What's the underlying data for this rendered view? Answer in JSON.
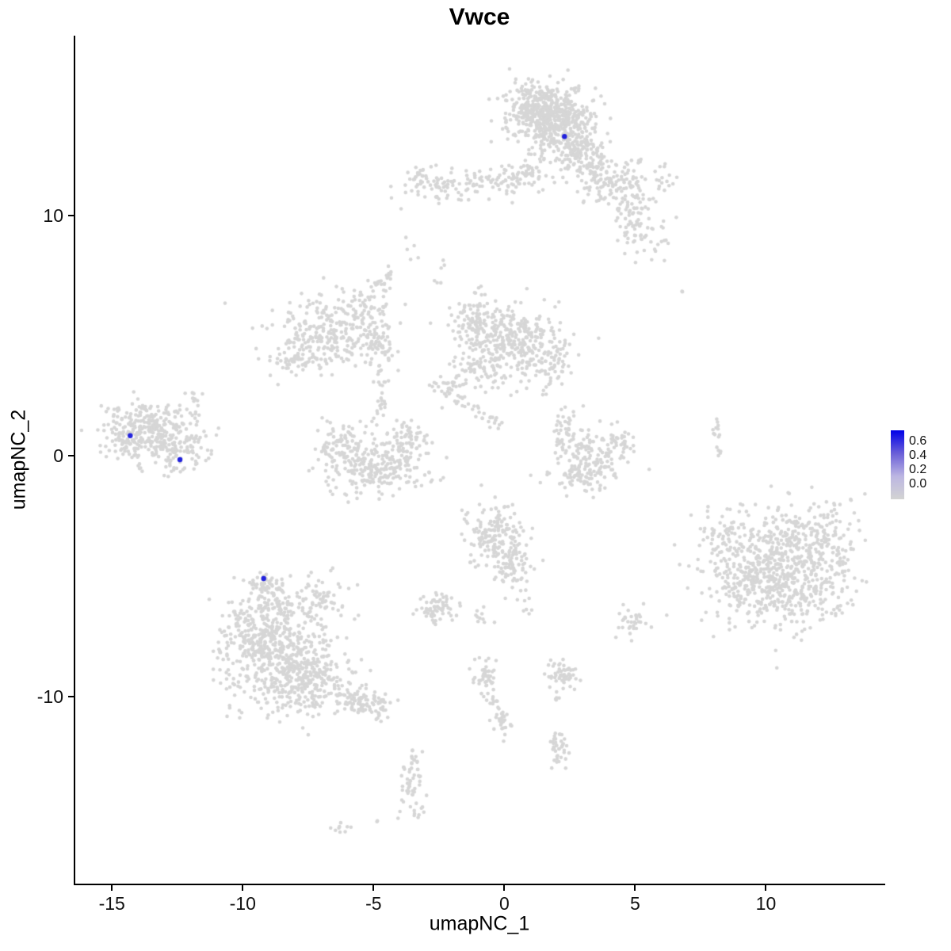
{
  "chart_data": {
    "type": "scatter",
    "title": "Vwce",
    "xlabel": "umapNC_1",
    "ylabel": "umapNC_2",
    "xlim": [
      -16.4,
      14.5
    ],
    "ylim": [
      -17.8,
      17.5
    ],
    "grid": false,
    "legend_position": "right",
    "x_ticks": [
      {
        "value": -15,
        "label": "-15"
      },
      {
        "value": -10,
        "label": "-10"
      },
      {
        "value": -5,
        "label": "-5"
      },
      {
        "value": 0,
        "label": "0"
      },
      {
        "value": 5,
        "label": "5"
      },
      {
        "value": 10,
        "label": "10"
      }
    ],
    "y_ticks": [
      {
        "value": 10,
        "label": "10"
      },
      {
        "value": 0,
        "label": "0"
      },
      {
        "value": -10,
        "label": "-10"
      }
    ],
    "point_color": "#D6D6D6",
    "point_radius": 2.3,
    "highlight_color": "#2222DD",
    "highlight_radius": 3.2,
    "axis_color": "#000000",
    "legend": {
      "labels": [
        "0.6",
        "0.4",
        "0.2",
        "0.0"
      ],
      "gradient": [
        "#0000E8",
        "#6A5FD8",
        "#BCB6E2",
        "#D3D3D3"
      ]
    },
    "highlighted_cells": [
      {
        "x": 2.3,
        "y": 13.3,
        "value": 0.6
      },
      {
        "x": -14.3,
        "y": 0.85,
        "value": 0.7
      },
      {
        "x": -12.4,
        "y": -0.15,
        "value": 0.5
      },
      {
        "x": -9.2,
        "y": -5.1,
        "value": 0.6
      }
    ],
    "clusters": [
      {
        "x": 1.8,
        "y": 14.1,
        "sx": 0.75,
        "sy": 0.7,
        "n": 480
      },
      {
        "x": 1.1,
        "y": 14.7,
        "sx": 0.5,
        "sy": 0.4,
        "n": 130
      },
      {
        "x": 2.6,
        "y": 13.0,
        "sx": 0.55,
        "sy": 0.5,
        "n": 130
      },
      {
        "x": 3.2,
        "y": 12.1,
        "sx": 0.45,
        "sy": 0.45,
        "n": 60
      },
      {
        "x": 3.9,
        "y": 11.3,
        "sx": 0.6,
        "sy": 0.55,
        "n": 65
      },
      {
        "x": 4.9,
        "y": 10.3,
        "sx": 0.55,
        "sy": 0.5,
        "n": 55
      },
      {
        "x": 5.3,
        "y": 9.1,
        "sx": 0.5,
        "sy": 0.45,
        "n": 45
      },
      {
        "x": 4.6,
        "y": 11.6,
        "sx": 0.7,
        "sy": 0.55,
        "n": 55
      },
      {
        "x": 6.2,
        "y": 11.3,
        "sx": 0.3,
        "sy": 0.3,
        "n": 8
      },
      {
        "x": -0.6,
        "y": 11.4,
        "sx": 1.3,
        "sy": 0.35,
        "n": 95
      },
      {
        "x": -2.6,
        "y": 11.1,
        "sx": 0.5,
        "sy": 0.35,
        "n": 45
      },
      {
        "x": -3.3,
        "y": 11.7,
        "sx": 0.25,
        "sy": 0.25,
        "n": 18
      },
      {
        "x": 0.8,
        "y": 11.9,
        "sx": 0.45,
        "sy": 0.35,
        "n": 40
      },
      {
        "x": 6.8,
        "y": 6.9,
        "sx": 0.05,
        "sy": 0.05,
        "n": 2
      },
      {
        "x": 0.2,
        "y": 4.9,
        "sx": 0.9,
        "sy": 0.7,
        "n": 290
      },
      {
        "x": -1.1,
        "y": 5.7,
        "sx": 0.5,
        "sy": 0.5,
        "n": 85
      },
      {
        "x": 1.5,
        "y": 3.9,
        "sx": 0.6,
        "sy": 0.5,
        "n": 85
      },
      {
        "x": -0.9,
        "y": 3.6,
        "sx": 0.6,
        "sy": 0.45,
        "n": 75
      },
      {
        "x": -2.2,
        "y": 2.8,
        "sx": 0.4,
        "sy": 0.35,
        "n": 35
      },
      {
        "x": -6.8,
        "y": 5.0,
        "sx": 1.0,
        "sy": 0.75,
        "n": 270
      },
      {
        "x": -5.4,
        "y": 6.2,
        "sx": 0.45,
        "sy": 0.4,
        "n": 50
      },
      {
        "line": [
          -5.0,
          6.8,
          -4.3,
          7.7
        ],
        "j": 0.12,
        "n": 22
      },
      {
        "x": -7.9,
        "y": 4.0,
        "sx": 0.5,
        "sy": 0.4,
        "n": 45
      },
      {
        "line": [
          -4.55,
          7.2,
          -4.75,
          2.2
        ],
        "j": 0.13,
        "n": 42
      },
      {
        "x": -4.8,
        "y": 4.6,
        "sx": 0.3,
        "sy": 0.4,
        "n": 40
      },
      {
        "line": [
          -4.7,
          2.2,
          -5.0,
          1.3
        ],
        "j": 0.12,
        "n": 10
      },
      {
        "x": -4.9,
        "y": -0.4,
        "sx": 1.0,
        "sy": 0.6,
        "n": 270
      },
      {
        "x": -6.2,
        "y": 0.6,
        "sx": 0.4,
        "sy": 0.5,
        "n": 65
      },
      {
        "x": -3.6,
        "y": 0.7,
        "sx": 0.35,
        "sy": 0.45,
        "n": 55
      },
      {
        "x": -13.5,
        "y": 1.1,
        "sx": 0.85,
        "sy": 0.6,
        "n": 310
      },
      {
        "x": -12.4,
        "y": 0.3,
        "sx": 0.5,
        "sy": 0.4,
        "n": 65
      },
      {
        "x": -14.4,
        "y": 0.6,
        "sx": 0.3,
        "sy": 0.35,
        "n": 35
      },
      {
        "line": [
          -11.9,
          2.9,
          -11.7,
          1.6
        ],
        "j": 0.1,
        "n": 12
      },
      {
        "x": -12.6,
        "y": -0.5,
        "sx": 0.4,
        "sy": 0.25,
        "n": 14
      },
      {
        "x": 2.3,
        "y": 1.0,
        "sx": 0.3,
        "sy": 0.5,
        "n": 45
      },
      {
        "x": 3.1,
        "y": -0.7,
        "sx": 0.6,
        "sy": 0.4,
        "n": 110
      },
      {
        "x": 4.3,
        "y": 0.3,
        "sx": 0.3,
        "sy": 0.45,
        "n": 45
      },
      {
        "x": 3.3,
        "y": 0.3,
        "sx": 0.5,
        "sy": 0.4,
        "n": 55
      },
      {
        "line": [
          -1.9,
          2.4,
          0.0,
          1.1
        ],
        "j": 0.12,
        "n": 28
      },
      {
        "line": [
          8.1,
          1.5,
          8.2,
          0.1
        ],
        "j": 0.07,
        "n": 16
      },
      {
        "x": 10.4,
        "y": -4.5,
        "sx": 1.2,
        "sy": 1.1,
        "n": 480
      },
      {
        "x": 11.8,
        "y": -3.4,
        "sx": 0.8,
        "sy": 0.8,
        "n": 140
      },
      {
        "x": 9.0,
        "y": -5.5,
        "sx": 0.8,
        "sy": 0.7,
        "n": 110
      },
      {
        "x": 11.3,
        "y": -6.0,
        "sx": 0.8,
        "sy": 0.6,
        "n": 90
      },
      {
        "x": 8.6,
        "y": -3.2,
        "sx": 0.6,
        "sy": 0.6,
        "n": 55
      },
      {
        "x": 12.8,
        "y": -4.5,
        "sx": 0.4,
        "sy": 0.6,
        "n": 35
      },
      {
        "x": -0.4,
        "y": -3.3,
        "sx": 0.55,
        "sy": 0.65,
        "n": 170
      },
      {
        "x": 0.3,
        "y": -4.6,
        "sx": 0.4,
        "sy": 0.5,
        "n": 65
      },
      {
        "line": [
          0.5,
          -5.5,
          0.9,
          -6.6
        ],
        "j": 0.15,
        "n": 9
      },
      {
        "x": -2.5,
        "y": -6.3,
        "sx": 0.4,
        "sy": 0.3,
        "n": 65
      },
      {
        "x": -1.0,
        "y": -6.7,
        "sx": 0.2,
        "sy": 0.2,
        "n": 10
      },
      {
        "x": -8.6,
        "y": -8.4,
        "sx": 1.1,
        "sy": 1.1,
        "n": 520
      },
      {
        "x": -9.6,
        "y": -7.3,
        "sx": 0.6,
        "sy": 0.6,
        "n": 110
      },
      {
        "x": -7.3,
        "y": -9.5,
        "sx": 0.7,
        "sy": 0.6,
        "n": 140
      },
      {
        "line": [
          -6.3,
          -9.8,
          -4.6,
          -10.6
        ],
        "j": 0.3,
        "n": 120
      },
      {
        "x": -9.1,
        "y": -5.4,
        "sx": 0.38,
        "sy": 0.3,
        "n": 50
      },
      {
        "x": -8.7,
        "y": -6.5,
        "sx": 0.6,
        "sy": 0.55,
        "n": 85
      },
      {
        "x": -6.9,
        "y": -5.9,
        "sx": 0.5,
        "sy": 0.5,
        "n": 60
      },
      {
        "x": 2.2,
        "y": -9.1,
        "sx": 0.35,
        "sy": 0.3,
        "n": 55
      },
      {
        "x": 2.1,
        "y": -10.1,
        "sx": 0.12,
        "sy": 0.1,
        "n": 4
      },
      {
        "x": 4.9,
        "y": -6.9,
        "sx": 0.3,
        "sy": 0.35,
        "n": 32
      },
      {
        "line": [
          -0.9,
          -8.9,
          0.1,
          -11.5
        ],
        "j": 0.16,
        "n": 60
      },
      {
        "x": -0.8,
        "y": -8.9,
        "sx": 0.22,
        "sy": 0.25,
        "n": 22
      },
      {
        "x": 2.0,
        "y": -12.2,
        "sx": 0.2,
        "sy": 0.4,
        "n": 40
      },
      {
        "x": -3.5,
        "y": -13.7,
        "sx": 0.25,
        "sy": 0.6,
        "n": 55
      },
      {
        "line": [
          -3.3,
          -12.3,
          -3.5,
          -13.0
        ],
        "j": 0.1,
        "n": 7
      },
      {
        "x": -6.1,
        "y": -15.5,
        "sx": 0.25,
        "sy": 0.15,
        "n": 9
      },
      {
        "x": -4.8,
        "y": -15.1,
        "sx": 0.08,
        "sy": 0.08,
        "n": 2
      },
      {
        "x": -10.7,
        "y": 6.3,
        "sx": 0.05,
        "sy": 0.05,
        "n": 1
      },
      {
        "x": -3.5,
        "y": 8.6,
        "sx": 0.15,
        "sy": 0.35,
        "n": 5
      },
      {
        "x": -2.4,
        "y": 7.7,
        "sx": 0.2,
        "sy": 0.3,
        "n": 6
      },
      {
        "x": 6.2,
        "y": -6.6,
        "sx": 0.05,
        "sy": 0.05,
        "n": 1
      }
    ]
  }
}
